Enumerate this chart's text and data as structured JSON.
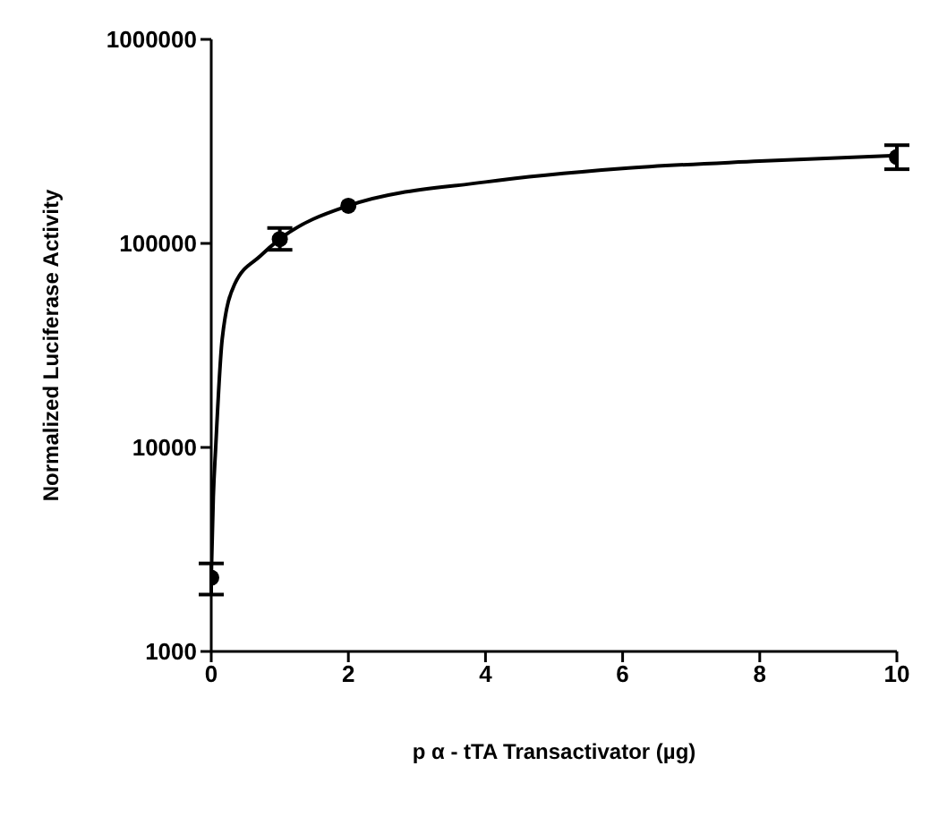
{
  "chart_data": {
    "type": "scatter",
    "xlabel": "p α - tTA Transactivator (µg)",
    "ylabel": "Normalized Luciferase Activity",
    "log": "y",
    "xlim": [
      0,
      10
    ],
    "xticks": [
      0,
      2,
      4,
      6,
      8,
      10
    ],
    "ylim": [
      1000,
      1000000
    ],
    "yticks": [
      1000,
      10000,
      100000,
      1000000
    ],
    "grid": false,
    "legend": false,
    "marker": "circle",
    "series": [
      {
        "color": "#000000",
        "x": [
          0,
          1,
          2,
          10
        ],
        "values": [
          2300,
          105000,
          153000,
          265000
        ],
        "errors": [
          [
            1900,
            2700
          ],
          [
            93000,
            119000
          ],
          null,
          [
            231000,
            303000
          ]
        ]
      },
      {
        "type": "line",
        "color": "#000000",
        "marker": "none",
        "line_style": "solid",
        "x": [
          0,
          0.03,
          0.065,
          0.16,
          0.34,
          0.72,
          1,
          2,
          4,
          6,
          8,
          10
        ],
        "values": [
          2300,
          5700,
          10000,
          34000,
          63000,
          87000,
          105000,
          153000,
          200000,
          233000,
          253000,
          270000
        ]
      }
    ]
  }
}
